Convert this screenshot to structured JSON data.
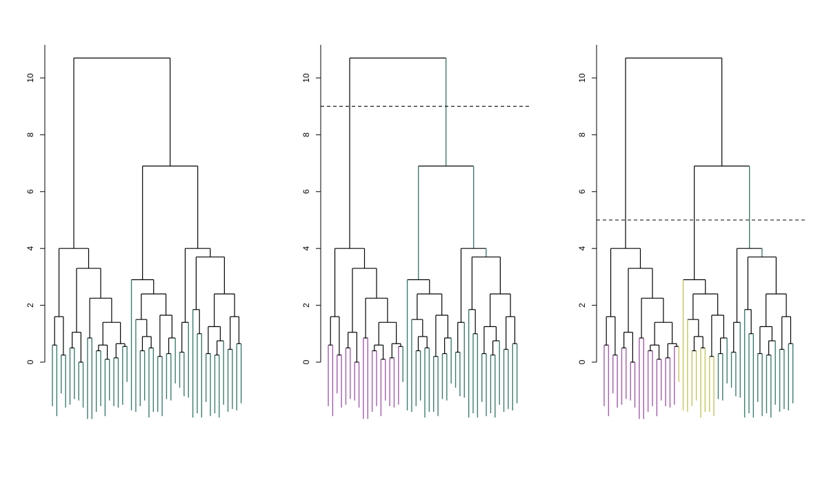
{
  "colors": {
    "cluster_1": "#3a7d6f",
    "cluster_purple": "#a35ab0",
    "cluster_green": "#3a7d6f",
    "cluster_yellow": "#c4c45a"
  },
  "chart_data": [
    {
      "type": "dendrogram",
      "title": "",
      "ylabel": "",
      "ylim": [
        0,
        11
      ],
      "yticks": [
        "0",
        "2",
        "4",
        "6",
        "8",
        "10"
      ],
      "cut_height": null,
      "num_clusters": 1,
      "leaf_clusters": [
        0,
        0,
        0,
        0,
        0,
        0,
        0,
        0,
        0,
        0,
        0,
        0,
        0,
        0,
        0,
        0,
        0,
        0,
        0,
        0,
        0,
        0,
        0,
        0,
        0,
        0,
        0,
        0,
        0,
        0,
        0,
        0,
        0,
        0,
        0,
        0,
        0,
        0,
        0,
        0,
        0,
        0,
        0,
        0,
        0
      ],
      "leaf_colors": [
        "#3a7d6f"
      ]
    },
    {
      "type": "dendrogram",
      "title": "",
      "ylabel": "",
      "ylim": [
        0,
        11
      ],
      "yticks": [
        "0",
        "2",
        "4",
        "6",
        "8",
        "10"
      ],
      "cut_height": 9,
      "num_clusters": 2,
      "leaf_clusters": [
        0,
        0,
        0,
        0,
        0,
        0,
        0,
        0,
        0,
        0,
        0,
        0,
        0,
        0,
        0,
        0,
        0,
        1,
        1,
        1,
        1,
        1,
        1,
        1,
        1,
        1,
        1,
        1,
        1,
        1,
        1,
        1,
        1,
        1,
        1,
        1,
        1,
        1,
        1,
        1,
        1,
        1,
        1,
        1,
        1
      ],
      "leaf_colors": [
        "#a35ab0",
        "#3a7d6f"
      ]
    },
    {
      "type": "dendrogram",
      "title": "",
      "ylabel": "",
      "ylim": [
        0,
        11
      ],
      "yticks": [
        "0",
        "2",
        "4",
        "6",
        "8",
        "10"
      ],
      "cut_height": 5,
      "num_clusters": 3,
      "leaf_clusters": [
        0,
        0,
        0,
        0,
        0,
        0,
        0,
        0,
        0,
        0,
        0,
        0,
        0,
        0,
        0,
        0,
        0,
        1,
        1,
        1,
        1,
        1,
        1,
        1,
        1,
        1,
        2,
        2,
        2,
        2,
        2,
        2,
        2,
        2,
        2,
        2,
        2,
        2,
        2,
        2,
        2,
        2,
        2,
        2,
        2
      ],
      "leaf_colors": [
        "#a35ab0",
        "#c4c45a",
        "#3a7d6f"
      ]
    }
  ]
}
